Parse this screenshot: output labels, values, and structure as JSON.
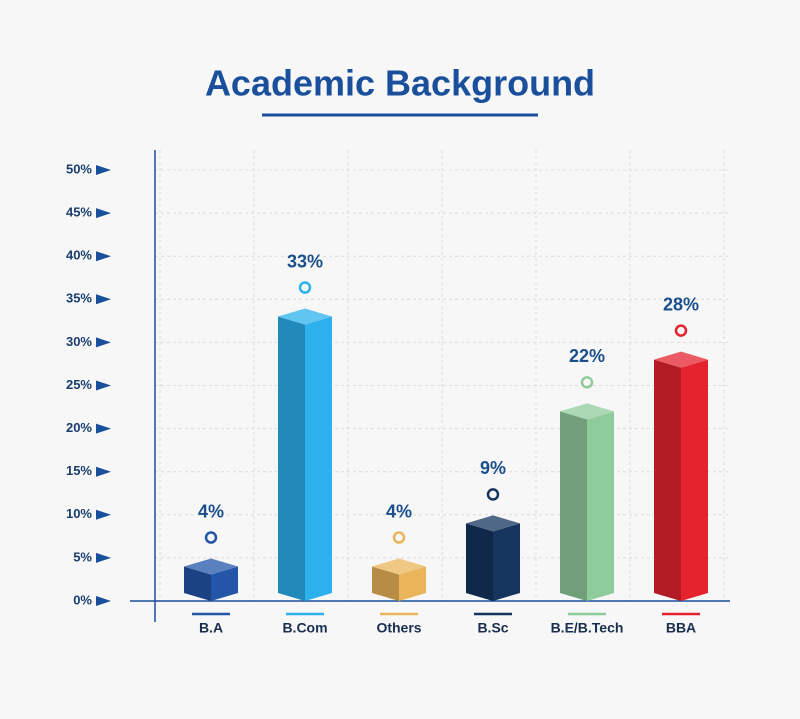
{
  "chart_data": {
    "type": "bar",
    "title": "Academic Background",
    "categories": [
      "B.A",
      "B.Com",
      "Others",
      "B.Sc",
      "B.E/B.Tech",
      "BBA"
    ],
    "values": [
      4,
      33,
      4,
      9,
      22,
      28
    ],
    "value_labels": [
      "4%",
      "33%",
      "4%",
      "9%",
      "22%",
      "28%"
    ],
    "colors": [
      "#2356a8",
      "#2cb1ee",
      "#eab55a",
      "#15355f",
      "#8fcc9c",
      "#e5232f"
    ],
    "ylim": [
      0,
      50
    ],
    "yticks": [
      {
        "value": 0,
        "label": "0%"
      },
      {
        "value": 5,
        "label": "5%"
      },
      {
        "value": 10,
        "label": "10%"
      },
      {
        "value": 15,
        "label": "15%"
      },
      {
        "value": 20,
        "label": "20%"
      },
      {
        "value": 25,
        "label": "25%"
      },
      {
        "value": 30,
        "label": "30%"
      },
      {
        "value": 35,
        "label": "35%"
      },
      {
        "value": 40,
        "label": "40%"
      },
      {
        "value": 45,
        "label": "45%"
      },
      {
        "value": 50,
        "label": "50%"
      }
    ],
    "grid": true
  }
}
